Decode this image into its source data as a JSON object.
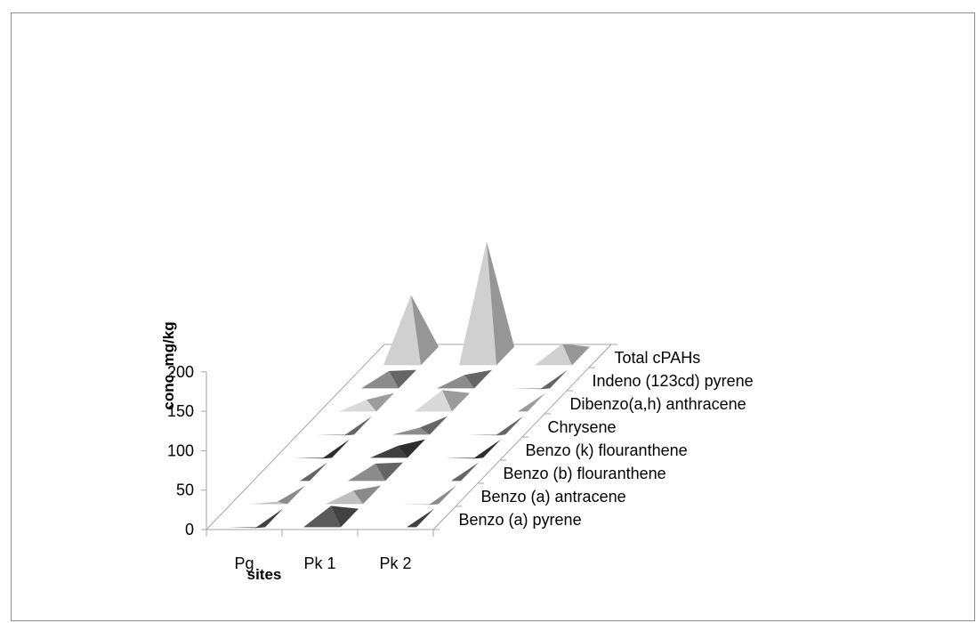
{
  "chart_data": {
    "type": "bar",
    "style": "3d-pyramid",
    "title": "",
    "xlabel": "sites",
    "ylabel": "conc. mg/kg",
    "ylim": [
      0,
      200
    ],
    "yticks": [
      "0",
      "50",
      "100",
      "150",
      "200"
    ],
    "grid": false,
    "legend": "none",
    "categories": [
      "Pg",
      "Pk 1",
      "Pk 2"
    ],
    "series": [
      {
        "name": "Benzo (a) pyrene",
        "values": [
          2,
          30,
          3
        ],
        "color": "#5a5a5a"
      },
      {
        "name": "Benzo (a) antracene",
        "values": [
          6,
          20,
          2
        ],
        "color": "#bfbfbf"
      },
      {
        "name": "Benzo (b) flouranthene",
        "values": [
          3,
          25,
          3
        ],
        "color": "#8c8c8c"
      },
      {
        "name": "Benzo (k) flouranthene",
        "values": [
          2,
          18,
          2
        ],
        "color": "#404040"
      },
      {
        "name": "Chrysene",
        "values": [
          2,
          12,
          2
        ],
        "color": "#8c8c8c"
      },
      {
        "name": "Dibenzo(a,h) anthracene",
        "values": [
          18,
          30,
          3
        ],
        "color": "#d9d9d9"
      },
      {
        "name": "Indeno (123cd) pyrene",
        "values": [
          25,
          20,
          2
        ],
        "color": "#8c8c8c"
      },
      {
        "name": "Total cPAHs",
        "values": [
          92,
          160,
          30
        ],
        "color": "#d0d0d0"
      }
    ]
  }
}
